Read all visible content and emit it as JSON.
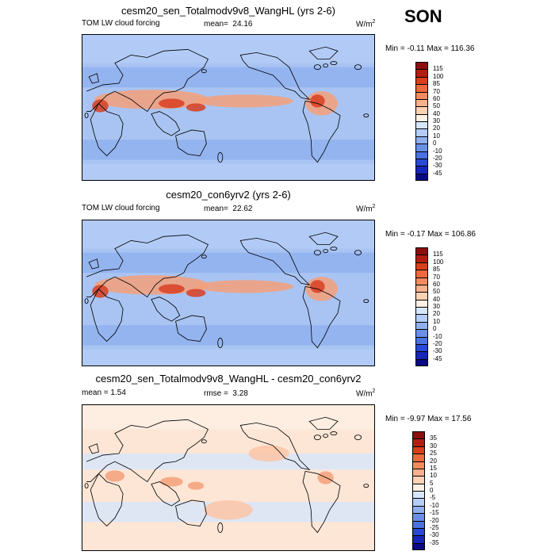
{
  "season": "SON",
  "panels": [
    {
      "title": "cesm20_sen_Totalmodv9v8_WangHL (yrs 2-6)",
      "left_label": "TOM LW cloud forcing",
      "stat_label": "mean=",
      "stat_value": "24.16",
      "units": "W/m",
      "units_sup": "2",
      "minmax": "Min =  -0.11 Max = 116.36",
      "bg": "#a9c4f2",
      "legend": {
        "labels": [
          "115",
          "100",
          "85",
          "70",
          "60",
          "50",
          "40",
          "30",
          "20",
          "10",
          "0",
          "-10",
          "-20",
          "-30",
          "-45"
        ],
        "colors": [
          "#8b0f0f",
          "#b21f10",
          "#d8401c",
          "#ec6a3c",
          "#f48b5e",
          "#f9b08c",
          "#fcd2b4",
          "#fdf0e4",
          "#d6e6fb",
          "#b4cdf6",
          "#8fb0ef",
          "#6a8fe8",
          "#4a72e0",
          "#2848d6",
          "#1626b8",
          "#0a0a86"
        ]
      },
      "warm_color": "#f4a07a",
      "hot_color": "#d83e22"
    },
    {
      "title": "cesm20_con6yrv2 (yrs 2-6)",
      "left_label": "TOM LW cloud forcing",
      "stat_label": "mean=",
      "stat_value": "22.62",
      "units": "W/m",
      "units_sup": "2",
      "minmax": "Min =  -0.17 Max = 106.86",
      "bg": "#a9c4f2",
      "legend": {
        "labels": [
          "115",
          "100",
          "85",
          "70",
          "60",
          "50",
          "40",
          "30",
          "20",
          "10",
          "0",
          "-10",
          "-20",
          "-30",
          "-45"
        ],
        "colors": [
          "#8b0f0f",
          "#b21f10",
          "#d8401c",
          "#ec6a3c",
          "#f48b5e",
          "#f9b08c",
          "#fcd2b4",
          "#fdf0e4",
          "#d6e6fb",
          "#b4cdf6",
          "#8fb0ef",
          "#6a8fe8",
          "#4a72e0",
          "#2848d6",
          "#1626b8",
          "#0a0a86"
        ]
      },
      "warm_color": "#f4a07a",
      "hot_color": "#d83e22"
    },
    {
      "title": "cesm20_sen_Totalmodv9v8_WangHL - cesm20_con6yrv2",
      "left_label": "mean =    1.54",
      "stat_label": "rmse =",
      "stat_value": "3.28",
      "units": "W/m",
      "units_sup": "2",
      "minmax": "Min =  -9.97 Max =  17.56",
      "bg": "#fde6d6",
      "legend": {
        "labels": [
          "35",
          "30",
          "25",
          "20",
          "15",
          "10",
          "5",
          "0",
          "-5",
          "-10",
          "-15",
          "-20",
          "-25",
          "-30",
          "-35"
        ],
        "colors": [
          "#8b0f0f",
          "#b21f10",
          "#d8401c",
          "#ec6a3c",
          "#f48b5e",
          "#f9b08c",
          "#fcd2b4",
          "#fdf0e4",
          "#d6e6fb",
          "#b4cdf6",
          "#8fb0ef",
          "#6a8fe8",
          "#4a72e0",
          "#2848d6",
          "#1626b8",
          "#0a0a86"
        ]
      },
      "warm_color": "#fbc4a4",
      "hot_color": "#f4a07a"
    }
  ]
}
